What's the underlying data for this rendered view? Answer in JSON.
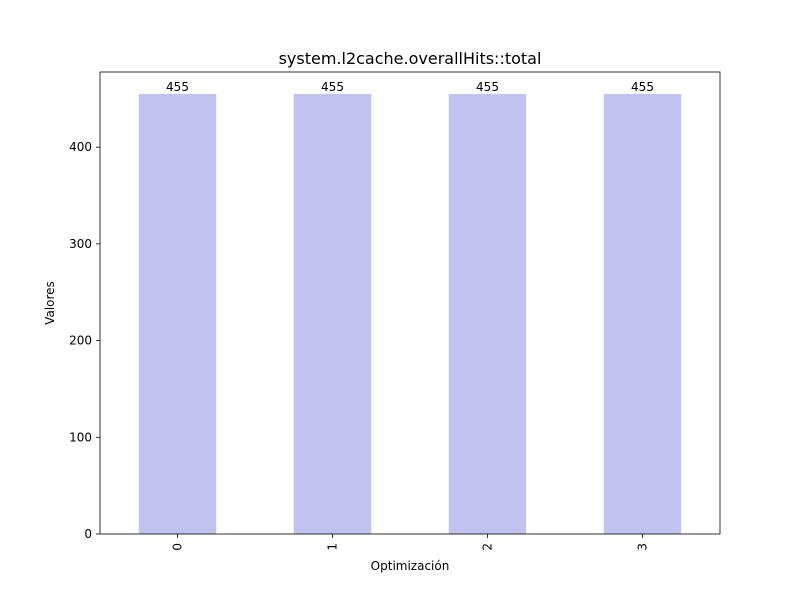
{
  "chart_data": {
    "type": "bar",
    "title": "system.l2cache.overallHits::total",
    "xlabel": "Optimización",
    "ylabel": "Valores",
    "categories": [
      "0",
      "1",
      "2",
      "3"
    ],
    "values": [
      455,
      455,
      455,
      455
    ],
    "data_labels": [
      "455",
      "455",
      "455",
      "455"
    ],
    "ylim": [
      0,
      477.75
    ],
    "yticks": [
      0,
      100,
      200,
      300,
      400
    ],
    "bar_color": "#c2c2f0",
    "grid": false,
    "legend": "none"
  }
}
